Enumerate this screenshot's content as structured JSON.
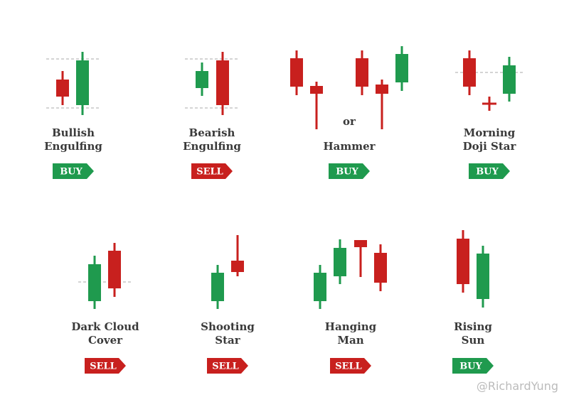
{
  "patterns": [
    {
      "lines": [
        "Bullish",
        "Engulfing"
      ],
      "signal": "BUY"
    },
    {
      "lines": [
        "Bearish",
        "Engulfing"
      ],
      "signal": "SELL"
    },
    {
      "lines": [
        "Hammer"
      ],
      "connector": "or",
      "signal": "BUY"
    },
    {
      "lines": [
        "Morning",
        "Doji Star"
      ],
      "signal": "BUY"
    },
    {
      "lines": [
        "Dark Cloud",
        "Cover"
      ],
      "signal": "SELL"
    },
    {
      "lines": [
        "Shooting",
        "Star"
      ],
      "signal": "SELL"
    },
    {
      "lines": [
        "Hanging",
        "Man"
      ],
      "signal": "SELL"
    },
    {
      "lines": [
        "Rising",
        "Sun"
      ],
      "signal": "BUY"
    }
  ],
  "watermark": "@RichardYung"
}
